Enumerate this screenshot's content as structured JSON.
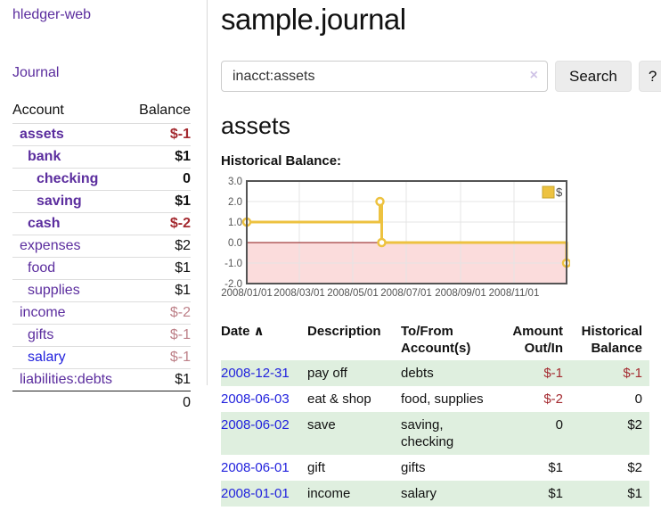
{
  "sidebar": {
    "app_title": "hledger-web",
    "nav": {
      "journal_label": "Journal"
    },
    "accounts_table": {
      "headers": {
        "account": "Account",
        "balance": "Balance"
      },
      "rows": [
        {
          "name": "assets",
          "balance": "$-1",
          "depth": 1,
          "bold": true,
          "negative": "strong"
        },
        {
          "name": "bank",
          "balance": "$1",
          "depth": 2,
          "bold": true,
          "negative": "none"
        },
        {
          "name": "checking",
          "balance": "0",
          "depth": 3,
          "bold": true,
          "negative": "none"
        },
        {
          "name": "saving",
          "balance": "$1",
          "depth": 3,
          "bold": true,
          "negative": "none"
        },
        {
          "name": "cash",
          "balance": "$-2",
          "depth": 2,
          "bold": true,
          "negative": "strong"
        },
        {
          "name": "expenses",
          "balance": "$2",
          "depth": 1,
          "bold": false,
          "negative": "none"
        },
        {
          "name": "food",
          "balance": "$1",
          "depth": 2,
          "bold": false,
          "negative": "none"
        },
        {
          "name": "supplies",
          "balance": "$1",
          "depth": 2,
          "bold": false,
          "negative": "none"
        },
        {
          "name": "income",
          "balance": "$-2",
          "depth": 1,
          "bold": false,
          "negative": "muted"
        },
        {
          "name": "gifts",
          "balance": "$-1",
          "depth": 2,
          "bold": false,
          "negative": "muted"
        },
        {
          "name": "salary",
          "balance": "$-1",
          "depth": 2,
          "bold": false,
          "negative": "muted",
          "link_color": "blue"
        },
        {
          "name": "liabilities:debts",
          "balance": "$1",
          "depth": 1,
          "bold": false,
          "negative": "none"
        }
      ],
      "total": "0"
    }
  },
  "header": {
    "title": "sample.journal"
  },
  "search": {
    "value": "inacct:assets",
    "clear_icon": "×",
    "search_label": "Search",
    "help_label": "?"
  },
  "account_page": {
    "heading": "assets",
    "chart_label": "Historical Balance:"
  },
  "chart_data": {
    "type": "line",
    "title": "Historical Balance",
    "step": true,
    "markers": true,
    "series": [
      {
        "name": "$",
        "color": "#edc240",
        "points": [
          {
            "x": "2008/01/01",
            "y": 1
          },
          {
            "x": "2008/06/01",
            "y": 2
          },
          {
            "x": "2008/06/03",
            "y": 0
          },
          {
            "x": "2008/12/31",
            "y": -1
          }
        ]
      }
    ],
    "xrange": [
      "2008/01/01",
      "2008/12/31"
    ],
    "ylim": [
      -2,
      3
    ],
    "yticks": [
      "3.0",
      "2.0",
      "1.0",
      "0.0",
      "-1.0",
      "-2.0"
    ],
    "ytick_values": [
      3,
      2,
      1,
      0,
      -1,
      -2
    ],
    "xticks": [
      "2008/01/01",
      "2008/03/01",
      "2008/05/01",
      "2008/07/01",
      "2008/09/01",
      "2008/11/01"
    ],
    "grid": true,
    "legend": {
      "label": "$",
      "position": "top-right"
    },
    "colors": {
      "series": "#edc240",
      "border": "#545454",
      "gridline": "#e4e4e4",
      "negative_region": "#fbdcdc",
      "zero_line": "#8b1212",
      "axis_text": "#545454"
    }
  },
  "register_table": {
    "headers": {
      "date": "Date",
      "sort_icon": "∧",
      "description": "Description",
      "tofrom_1": "To/From",
      "tofrom_2": "Account(s)",
      "amount_1": "Amount",
      "amount_2": "Out/In",
      "balance_1": "Historical",
      "balance_2": "Balance"
    },
    "rows": [
      {
        "date": "2008-12-31",
        "description": "pay off",
        "accounts": "debts",
        "amount": "$-1",
        "balance": "$-1"
      },
      {
        "date": "2008-06-03",
        "description": "eat & shop",
        "accounts": "food, supplies",
        "amount": "$-2",
        "balance": "0"
      },
      {
        "date": "2008-06-02",
        "description": "save",
        "accounts": "saving, checking",
        "amount": "0",
        "balance": "$2"
      },
      {
        "date": "2008-06-01",
        "description": "gift",
        "accounts": "gifts",
        "amount": "$1",
        "balance": "$2"
      },
      {
        "date": "2008-01-01",
        "description": "income",
        "accounts": "salary",
        "amount": "$1",
        "balance": "$1"
      }
    ]
  },
  "colors": {
    "link_purple": "#5b2d9e",
    "link_blue": "#2222dd",
    "negative_strong": "#a42a30",
    "negative_muted": "#bd8088",
    "row_stripe_green": "#dfefdf",
    "chart_series_yellow": "#edc240"
  }
}
